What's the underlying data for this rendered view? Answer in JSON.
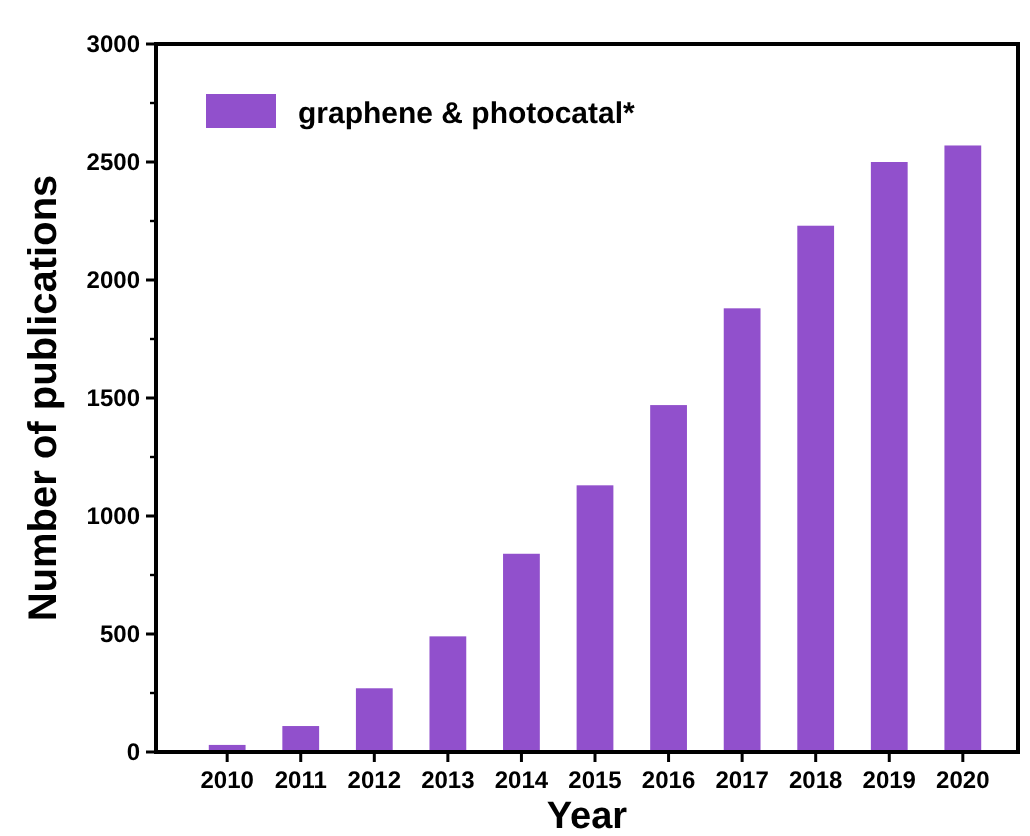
{
  "chart_data": {
    "type": "bar",
    "xlabel": "Year",
    "ylabel": "Number of publications",
    "categories": [
      "2010",
      "2011",
      "2012",
      "2013",
      "2014",
      "2015",
      "2016",
      "2017",
      "2018",
      "2019",
      "2020"
    ],
    "series": [
      {
        "name": "graphene & photocatal*",
        "color": "#9150cc",
        "values": [
          30,
          110,
          270,
          490,
          840,
          1130,
          1470,
          1880,
          2230,
          2500,
          2570
        ]
      }
    ],
    "ylim": [
      0,
      3000
    ],
    "yticks": [
      0,
      500,
      1000,
      1500,
      2000,
      2500,
      3000
    ],
    "legend": "top left",
    "grid": false
  }
}
